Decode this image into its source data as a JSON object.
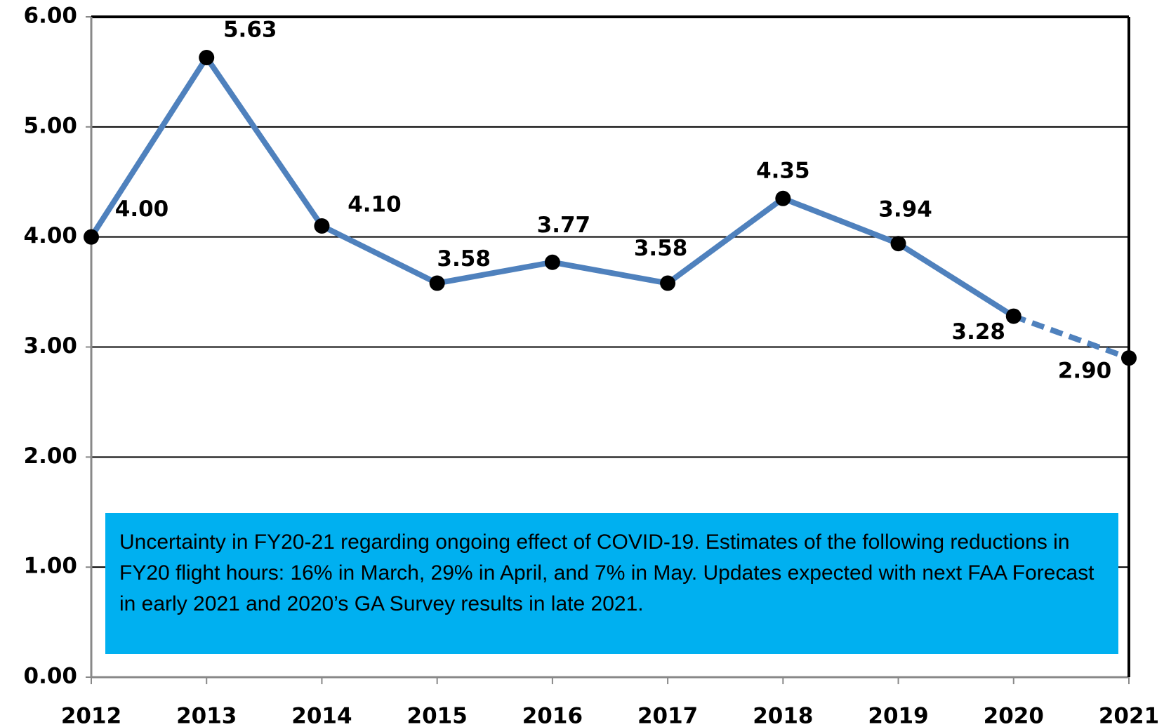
{
  "chart_data": {
    "type": "line",
    "x": [
      2012,
      2013,
      2014,
      2015,
      2016,
      2017,
      2018,
      2019,
      2020,
      2021
    ],
    "xlim": [
      2012,
      2021
    ],
    "xticks": [
      2012,
      2013,
      2014,
      2015,
      2016,
      2017,
      2018,
      2019,
      2020,
      2021
    ],
    "series": [
      {
        "color": "#4f81bd",
        "values": [
          4.0,
          5.63,
          4.1,
          3.58,
          3.77,
          3.58,
          4.35,
          3.94,
          3.28,
          2.9
        ],
        "value_labels": [
          "4.00",
          "5.63",
          "4.10",
          "3.58",
          "3.77",
          "3.58",
          "4.35",
          "3.94",
          "3.28",
          "2.90"
        ]
      }
    ],
    "dashed_after_x": 2020,
    "ylim": [
      0,
      6
    ],
    "yticks": [
      {
        "value": 0,
        "label": "0.00"
      },
      {
        "value": 1,
        "label": "1.00"
      },
      {
        "value": 2,
        "label": "2.00"
      },
      {
        "value": 3,
        "label": "3.00"
      },
      {
        "value": 4,
        "label": "4.00"
      },
      {
        "value": 5,
        "label": "5.00"
      },
      {
        "value": 6,
        "label": "6.00"
      }
    ],
    "grid": true,
    "annotation": "Uncertainty in FY20-21 regarding ongoing effect of COVID-19. Estimates of the following reductions in FY20 flight hours: 16% in March, 29% in April, and 7% in May. Updates expected with next FAA Forecast in early 2021 and 2020’s GA Survey results in late 2021.",
    "annotation_color": "#00b0f0"
  }
}
